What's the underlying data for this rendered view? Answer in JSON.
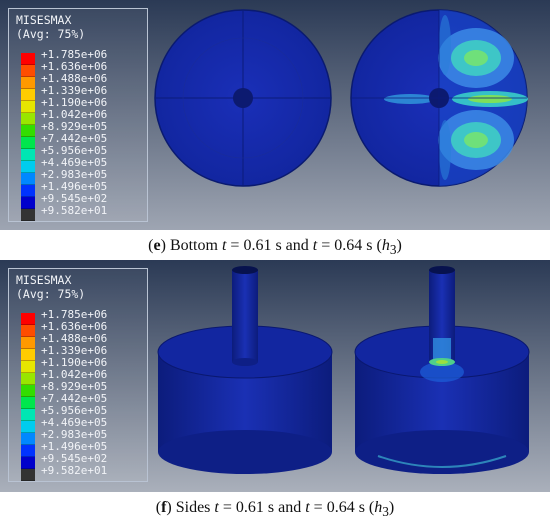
{
  "legend": {
    "variable": "MISESMAX",
    "averaging": "(Avg: 75%)",
    "levels": [
      {
        "label": "+1.785e+06",
        "color": "#ff0000"
      },
      {
        "label": "+1.636e+06",
        "color": "#ff4d00"
      },
      {
        "label": "+1.488e+06",
        "color": "#ff9900"
      },
      {
        "label": "+1.339e+06",
        "color": "#ffcc00"
      },
      {
        "label": "+1.190e+06",
        "color": "#e6e600"
      },
      {
        "label": "+1.042e+06",
        "color": "#99e600"
      },
      {
        "label": "+8.929e+05",
        "color": "#33dd00"
      },
      {
        "label": "+7.442e+05",
        "color": "#00e64d"
      },
      {
        "label": "+5.956e+05",
        "color": "#00e6b3"
      },
      {
        "label": "+4.469e+05",
        "color": "#00ccee"
      },
      {
        "label": "+2.983e+05",
        "color": "#0088ff"
      },
      {
        "label": "+1.496e+05",
        "color": "#0033ff"
      },
      {
        "label": "+9.545e+02",
        "color": "#0000cc"
      },
      {
        "label": "+9.582e+01",
        "color": "#333333"
      }
    ]
  },
  "captions": {
    "e": {
      "letter": "e",
      "view": "Bottom",
      "t1": "0.61",
      "t2": "0.64",
      "h": "h",
      "sub": "3"
    },
    "f": {
      "letter": "f",
      "view": "Sides",
      "t1": "0.61",
      "t2": "0.64",
      "h": "h",
      "sub": "3"
    }
  },
  "colors": {
    "background_top": "#2b3a55",
    "background_bottom": "#a8adb8",
    "model_blue": "#1428a8"
  }
}
